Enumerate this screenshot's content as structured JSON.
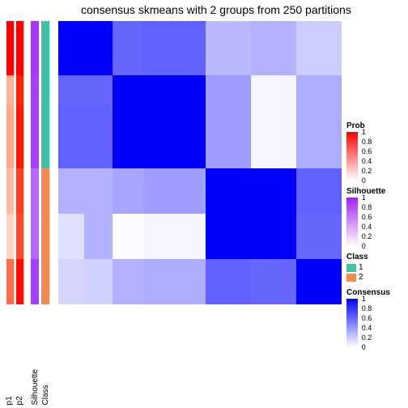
{
  "title": "consensus skmeans with 2 groups from 250 partitions",
  "dimensions": {
    "rows": 7,
    "cols": 7,
    "heatmap_size": 350,
    "strip_height": 350
  },
  "row_heights_pct": [
    9,
    10,
    11,
    22,
    16,
    16,
    16
  ],
  "annotations": {
    "p1": {
      "label": "p1",
      "colors": [
        "#ff0000",
        "#ff0000",
        "#ffb199",
        "#ffa688",
        "#ffbaa6",
        "#ffd2c4",
        "#ff6d4c"
      ]
    },
    "p2": {
      "label": "p2",
      "colors": [
        "#ff0000",
        "#ff0000",
        "#ff2200",
        "#ff1800",
        "#ff3e20",
        "#ff4a2c",
        "#ff0800"
      ]
    },
    "silhouette": {
      "label": "Silhouette",
      "colors": [
        "#a638ff",
        "#a638ff",
        "#a642ff",
        "#a642ff",
        "#b866ff",
        "#b866ff",
        "#a442ff"
      ]
    },
    "class": {
      "label": "Class",
      "colors": [
        "#3fc1a3",
        "#3fc1a3",
        "#3fc1a3",
        "#3fc1a3",
        "#f58850",
        "#f58850",
        "#f58850"
      ]
    }
  },
  "heatmap": {
    "values": [
      [
        1.0,
        1.0,
        0.6,
        0.62,
        0.28,
        0.3,
        0.2
      ],
      [
        1.0,
        1.0,
        0.6,
        0.62,
        0.28,
        0.3,
        0.2
      ],
      [
        0.6,
        0.6,
        1.0,
        1.0,
        0.38,
        0.04,
        0.32
      ],
      [
        0.62,
        0.62,
        1.0,
        1.0,
        0.38,
        0.04,
        0.32
      ],
      [
        0.3,
        0.3,
        0.35,
        0.38,
        1.0,
        1.0,
        0.62
      ],
      [
        0.12,
        0.3,
        0.02,
        0.04,
        1.0,
        1.0,
        0.6
      ],
      [
        0.16,
        0.18,
        0.3,
        0.32,
        0.62,
        0.6,
        1.0
      ]
    ],
    "color_low": "#ffffff",
    "color_high": "#0000ff"
  },
  "legends": {
    "prob": {
      "title": "Prob",
      "gradient": [
        "#ff0000",
        "#ffffff"
      ],
      "ticks": [
        "1",
        "0.8",
        "0.6",
        "0.4",
        "0.2",
        "0"
      ]
    },
    "silhouette": {
      "title": "Silhouette",
      "gradient": [
        "#a020f0",
        "#ffffff"
      ],
      "ticks": [
        "1",
        "0.8",
        "0.6",
        "0.4",
        "0.2",
        "0"
      ]
    },
    "class": {
      "title": "Class",
      "items": [
        {
          "label": "1",
          "color": "#3fc1a3"
        },
        {
          "label": "2",
          "color": "#f58850"
        }
      ]
    },
    "consensus": {
      "title": "Consensus",
      "gradient": [
        "#0000ff",
        "#ffffff"
      ],
      "ticks": [
        "1",
        "0.8",
        "0.6",
        "0.4",
        "0.2",
        "0"
      ]
    }
  }
}
